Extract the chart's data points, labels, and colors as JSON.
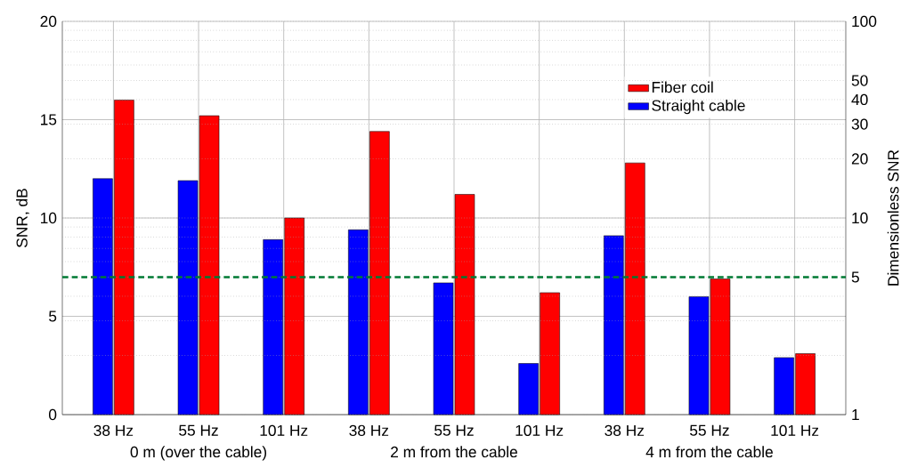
{
  "chart_data": {
    "type": "bar",
    "categories": [
      "38 Hz",
      "55 Hz",
      "101 Hz",
      "38 Hz",
      "55 Hz",
      "101 Hz",
      "38 Hz",
      "55 Hz",
      "101 Hz"
    ],
    "series": [
      {
        "name": "Straight cable",
        "color": "#0000ff",
        "values": [
          12.0,
          11.9,
          8.9,
          9.4,
          6.7,
          2.6,
          9.1,
          6.0,
          2.9
        ]
      },
      {
        "name": "Fiber coil",
        "color": "#ff0000",
        "values": [
          16.0,
          15.2,
          10.0,
          14.4,
          11.2,
          6.2,
          12.8,
          6.9,
          3.1
        ]
      }
    ],
    "ylabel": "SNR, dB",
    "y2label": "Dimensionless SNR",
    "ylim": [
      0,
      20
    ],
    "yticks": [
      0,
      5,
      10,
      15,
      20
    ],
    "y2lim": [
      1,
      100
    ],
    "y2ticks": [
      1,
      {
        "value": 2,
        "label": null
      },
      {
        "value": 3,
        "label": null
      },
      {
        "value": 4,
        "label": null
      },
      5,
      {
        "value": 6,
        "label": null
      },
      {
        "value": 7,
        "label": null
      },
      {
        "value": 8,
        "label": null
      },
      {
        "value": 9,
        "label": null
      },
      10,
      20,
      30,
      40,
      50,
      {
        "value": 60,
        "label": null
      },
      {
        "value": 70,
        "label": null
      },
      {
        "value": 80,
        "label": null
      },
      {
        "value": 90,
        "label": null
      },
      100
    ],
    "log": "y2",
    "ref_lines": [
      {
        "axis": "y2",
        "value": 5,
        "color": "#007a33",
        "line_style": "dashed"
      }
    ],
    "annotations": [
      "0 m (over the cable)",
      "2 m from the cable",
      "4 m from the cable"
    ],
    "grid": true,
    "legend": "top right"
  }
}
